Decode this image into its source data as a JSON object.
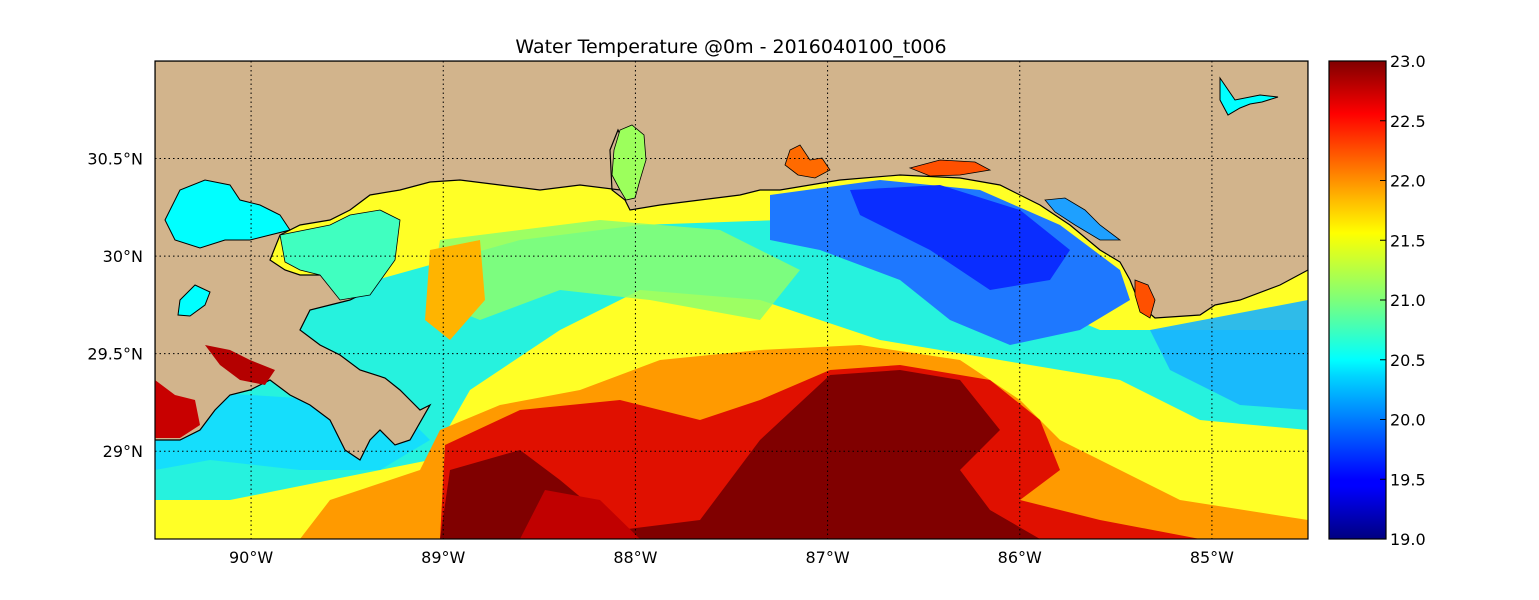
{
  "title": "Water Temperature @0m - 2016040100_t006",
  "map": {
    "lon_range": [
      -90.5,
      -84.5
    ],
    "lat_range": [
      28.55,
      31.0
    ],
    "meridians": [
      -90,
      -89,
      -88,
      -87,
      -86,
      -85
    ],
    "parallels": [
      29.0,
      29.5,
      30.0,
      30.5
    ],
    "lon_labels": [
      "90°W",
      "89°W",
      "88°W",
      "87°W",
      "86°W",
      "85°W"
    ],
    "lat_labels": [
      "29°N",
      "29.5°N",
      "30°N",
      "30.5°N"
    ],
    "grid": "dotted",
    "land_color": "#d2b48c",
    "coastline_color": "#000000",
    "inland_water_color": "#00ffff",
    "colormap": "jet",
    "value_range": [
      19.0,
      23.0
    ]
  },
  "colorbar": {
    "placement": "right",
    "ticks": [
      "19.0",
      "19.5",
      "20.0",
      "20.5",
      "21.0",
      "21.5",
      "22.0",
      "22.5",
      "23.0"
    ]
  }
}
